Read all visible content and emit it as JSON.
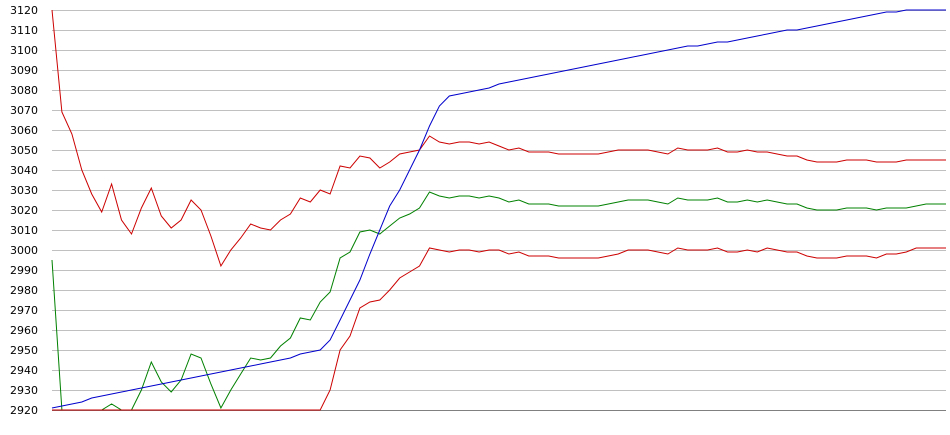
{
  "chart_data": {
    "type": "line",
    "title": "",
    "xlabel": "",
    "ylabel": "",
    "ylim": [
      2920,
      3120
    ],
    "yticks": [
      3120,
      3110,
      3100,
      3090,
      3080,
      3070,
      3060,
      3050,
      3040,
      3030,
      3020,
      3010,
      3000,
      2990,
      2980,
      2970,
      2960,
      2950,
      2940,
      2930,
      2920
    ],
    "grid": true,
    "legend": "none",
    "x_count": 91,
    "series": [
      {
        "color": "#cc0000",
        "values": [
          3120,
          3069,
          3058,
          3040,
          3028,
          3019,
          3033,
          3015,
          3008,
          3021,
          3031,
          3017,
          3011,
          3015,
          3025,
          3020,
          3007,
          2992,
          3000,
          3006,
          3013,
          3011,
          3010,
          3015,
          3018,
          3026,
          3024,
          3030,
          3028,
          3042,
          3041,
          3047,
          3046,
          3041,
          3044,
          3048,
          3049,
          3050,
          3057,
          3054,
          3053,
          3054,
          3054,
          3053,
          3054,
          3052,
          3050,
          3051,
          3049,
          3049,
          3049,
          3048,
          3048,
          3048,
          3048,
          3048,
          3049,
          3050,
          3050,
          3050,
          3050,
          3049,
          3048,
          3051,
          3050,
          3050,
          3050,
          3051,
          3049,
          3049,
          3050,
          3049,
          3049,
          3048,
          3047,
          3047,
          3045,
          3044,
          3044,
          3044,
          3045,
          3045,
          3045,
          3044,
          3044,
          3044,
          3045,
          3045,
          3045,
          3045,
          3045
        ]
      },
      {
        "color": "#008000",
        "values": [
          2995,
          2920,
          2920,
          2920,
          2920,
          2920,
          2923,
          2920,
          2920,
          2930,
          2944,
          2934,
          2929,
          2935,
          2948,
          2946,
          2933,
          2921,
          2930,
          2938,
          2946,
          2945,
          2946,
          2952,
          2956,
          2966,
          2965,
          2974,
          2979,
          2996,
          2999,
          3009,
          3010,
          3008,
          3012,
          3016,
          3018,
          3021,
          3029,
          3027,
          3026,
          3027,
          3027,
          3026,
          3027,
          3026,
          3024,
          3025,
          3023,
          3023,
          3023,
          3022,
          3022,
          3022,
          3022,
          3022,
          3023,
          3024,
          3025,
          3025,
          3025,
          3024,
          3023,
          3026,
          3025,
          3025,
          3025,
          3026,
          3024,
          3024,
          3025,
          3024,
          3025,
          3024,
          3023,
          3023,
          3021,
          3020,
          3020,
          3020,
          3021,
          3021,
          3021,
          3020,
          3021,
          3021,
          3021,
          3022,
          3023,
          3023,
          3023
        ]
      },
      {
        "color": "#cc0000",
        "values": [
          2920,
          2920,
          2920,
          2920,
          2920,
          2920,
          2920,
          2920,
          2920,
          2920,
          2920,
          2920,
          2920,
          2920,
          2920,
          2920,
          2920,
          2920,
          2920,
          2920,
          2920,
          2920,
          2920,
          2920,
          2920,
          2920,
          2920,
          2920,
          2930,
          2950,
          2957,
          2971,
          2974,
          2975,
          2980,
          2986,
          2989,
          2992,
          3001,
          3000,
          2999,
          3000,
          3000,
          2999,
          3000,
          3000,
          2998,
          2999,
          2997,
          2997,
          2997,
          2996,
          2996,
          2996,
          2996,
          2996,
          2997,
          2998,
          3000,
          3000,
          3000,
          2999,
          2998,
          3001,
          3000,
          3000,
          3000,
          3001,
          2999,
          2999,
          3000,
          2999,
          3001,
          3000,
          2999,
          2999,
          2997,
          2996,
          2996,
          2996,
          2997,
          2997,
          2997,
          2996,
          2998,
          2998,
          2999,
          3001,
          3001,
          3001,
          3001
        ]
      },
      {
        "color": "#0000cc",
        "values": [
          2921,
          2922,
          2923,
          2924,
          2926,
          2927,
          2928,
          2929,
          2930,
          2931,
          2932,
          2933,
          2934,
          2935,
          2936,
          2937,
          2938,
          2939,
          2940,
          2941,
          2942,
          2943,
          2944,
          2945,
          2946,
          2948,
          2949,
          2950,
          2955,
          2965,
          2975,
          2985,
          2998,
          3010,
          3022,
          3030,
          3040,
          3050,
          3062,
          3072,
          3077,
          3078,
          3079,
          3080,
          3081,
          3083,
          3084,
          3085,
          3086,
          3087,
          3088,
          3089,
          3090,
          3091,
          3092,
          3093,
          3094,
          3095,
          3096,
          3097,
          3098,
          3099,
          3100,
          3101,
          3102,
          3102,
          3103,
          3104,
          3104,
          3105,
          3106,
          3107,
          3108,
          3109,
          3110,
          3110,
          3111,
          3112,
          3113,
          3114,
          3115,
          3116,
          3117,
          3118,
          3119,
          3119,
          3120,
          3120,
          3120,
          3120,
          3120
        ]
      }
    ]
  }
}
